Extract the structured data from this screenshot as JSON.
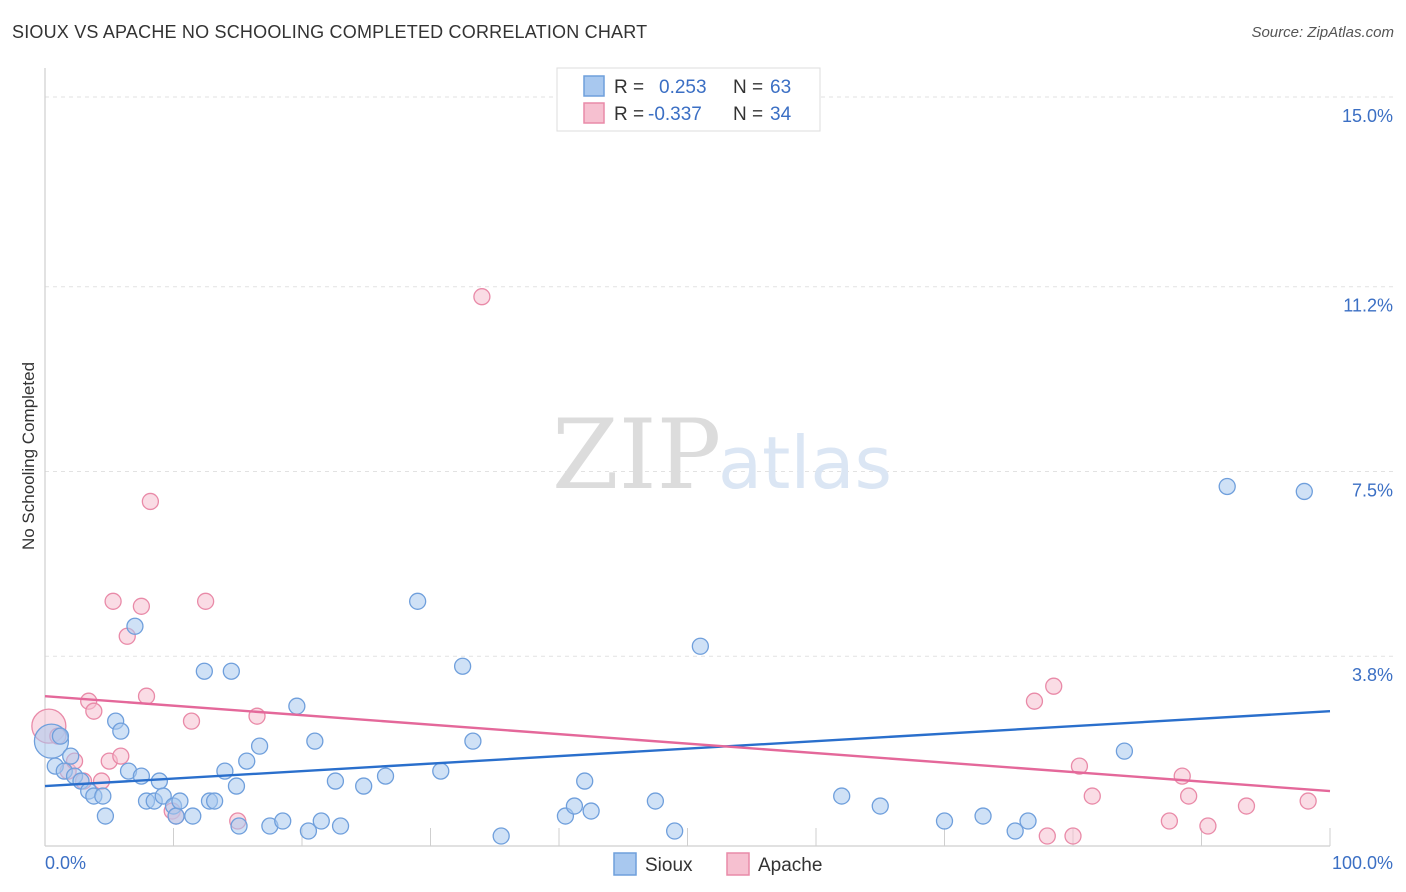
{
  "title": "SIOUX VS APACHE NO SCHOOLING COMPLETED CORRELATION CHART",
  "source": "Source: ZipAtlas.com",
  "watermark": {
    "zip": "ZIP",
    "atlas": "atlas"
  },
  "chart_data": {
    "type": "scatter",
    "title": "SIOUX VS APACHE NO SCHOOLING COMPLETED CORRELATION CHART",
    "xlabel": "",
    "ylabel": "No Schooling Completed",
    "xlim": [
      0,
      100
    ],
    "ylim": [
      0,
      15.5
    ],
    "x_ticks": [
      {
        "value": 0,
        "label": "0.0%"
      },
      {
        "value": 100,
        "label": "100.0%"
      }
    ],
    "y_ticks": [
      {
        "value": 3.8,
        "label": "3.8%"
      },
      {
        "value": 7.5,
        "label": "7.5%"
      },
      {
        "value": 11.2,
        "label": "11.2%"
      },
      {
        "value": 15.0,
        "label": "15.0%"
      }
    ],
    "legend_top": [
      {
        "r_label": "R =",
        "r_value": "0.253",
        "n_label": "N =",
        "n_value": "63",
        "color": "#a8c8ef",
        "stroke": "#6f9fdc"
      },
      {
        "r_label": "R =",
        "r_value": "-0.337",
        "n_label": "N =",
        "n_value": "34",
        "color": "#f6c0d0",
        "stroke": "#e98aa8"
      }
    ],
    "series": [
      {
        "name": "Sioux",
        "color": "#a8c8ef",
        "stroke": "#6f9fdc",
        "line_color": "#2a6fcc",
        "trend": {
          "x": [
            0,
            100
          ],
          "y": [
            1.2,
            2.7
          ]
        },
        "points": [
          {
            "x": 0.5,
            "y": 2.1,
            "big": true
          },
          {
            "x": 0.8,
            "y": 1.6
          },
          {
            "x": 1.2,
            "y": 2.2
          },
          {
            "x": 1.5,
            "y": 1.5
          },
          {
            "x": 2.0,
            "y": 1.8
          },
          {
            "x": 2.3,
            "y": 1.4
          },
          {
            "x": 2.8,
            "y": 1.3
          },
          {
            "x": 3.4,
            "y": 1.1
          },
          {
            "x": 3.8,
            "y": 1.0
          },
          {
            "x": 4.5,
            "y": 1.0
          },
          {
            "x": 4.7,
            "y": 0.6
          },
          {
            "x": 5.5,
            "y": 2.5
          },
          {
            "x": 5.9,
            "y": 2.3
          },
          {
            "x": 6.5,
            "y": 1.5
          },
          {
            "x": 7.0,
            "y": 4.4
          },
          {
            "x": 7.5,
            "y": 1.4
          },
          {
            "x": 7.9,
            "y": 0.9
          },
          {
            "x": 8.5,
            "y": 0.9
          },
          {
            "x": 8.9,
            "y": 1.3
          },
          {
            "x": 9.2,
            "y": 1.0
          },
          {
            "x": 10.0,
            "y": 0.8
          },
          {
            "x": 10.2,
            "y": 0.6
          },
          {
            "x": 10.5,
            "y": 0.9
          },
          {
            "x": 11.5,
            "y": 0.6
          },
          {
            "x": 12.4,
            "y": 3.5
          },
          {
            "x": 12.8,
            "y": 0.9
          },
          {
            "x": 13.2,
            "y": 0.9
          },
          {
            "x": 14.0,
            "y": 1.5
          },
          {
            "x": 14.5,
            "y": 3.5
          },
          {
            "x": 14.9,
            "y": 1.2
          },
          {
            "x": 15.1,
            "y": 0.4
          },
          {
            "x": 15.7,
            "y": 1.7
          },
          {
            "x": 16.7,
            "y": 2.0
          },
          {
            "x": 17.5,
            "y": 0.4
          },
          {
            "x": 18.5,
            "y": 0.5
          },
          {
            "x": 19.6,
            "y": 2.8
          },
          {
            "x": 20.5,
            "y": 0.3
          },
          {
            "x": 21.0,
            "y": 2.1
          },
          {
            "x": 21.5,
            "y": 0.5
          },
          {
            "x": 22.6,
            "y": 1.3
          },
          {
            "x": 23.0,
            "y": 0.4
          },
          {
            "x": 24.8,
            "y": 1.2
          },
          {
            "x": 26.5,
            "y": 1.4
          },
          {
            "x": 29.0,
            "y": 4.9
          },
          {
            "x": 30.8,
            "y": 1.5
          },
          {
            "x": 32.5,
            "y": 3.6
          },
          {
            "x": 33.3,
            "y": 2.1
          },
          {
            "x": 35.5,
            "y": 0.2
          },
          {
            "x": 40.5,
            "y": 0.6
          },
          {
            "x": 41.2,
            "y": 0.8
          },
          {
            "x": 42.0,
            "y": 1.3
          },
          {
            "x": 42.5,
            "y": 0.7
          },
          {
            "x": 47.5,
            "y": 0.9
          },
          {
            "x": 49.0,
            "y": 0.3
          },
          {
            "x": 51.0,
            "y": 4.0
          },
          {
            "x": 62.0,
            "y": 1.0
          },
          {
            "x": 65.0,
            "y": 0.8
          },
          {
            "x": 70.0,
            "y": 0.5
          },
          {
            "x": 73.0,
            "y": 0.6
          },
          {
            "x": 75.5,
            "y": 0.3
          },
          {
            "x": 76.5,
            "y": 0.5
          },
          {
            "x": 84.0,
            "y": 1.9
          },
          {
            "x": 92.0,
            "y": 7.2
          },
          {
            "x": 98.0,
            "y": 7.1
          }
        ]
      },
      {
        "name": "Apache",
        "color": "#f6c0d0",
        "stroke": "#e98aa8",
        "line_color": "#e4689a",
        "trend": {
          "x": [
            0,
            100
          ],
          "y": [
            3.0,
            1.1
          ]
        },
        "points": [
          {
            "x": 0.3,
            "y": 2.4,
            "big": true
          },
          {
            "x": 1.0,
            "y": 2.2
          },
          {
            "x": 1.8,
            "y": 1.5
          },
          {
            "x": 2.3,
            "y": 1.7
          },
          {
            "x": 3.0,
            "y": 1.3
          },
          {
            "x": 3.4,
            "y": 2.9
          },
          {
            "x": 3.8,
            "y": 2.7
          },
          {
            "x": 4.4,
            "y": 1.3
          },
          {
            "x": 5.0,
            "y": 1.7
          },
          {
            "x": 5.3,
            "y": 4.9
          },
          {
            "x": 5.9,
            "y": 1.8
          },
          {
            "x": 6.4,
            "y": 4.2
          },
          {
            "x": 7.5,
            "y": 4.8
          },
          {
            "x": 7.9,
            "y": 3.0
          },
          {
            "x": 8.2,
            "y": 6.9
          },
          {
            "x": 9.9,
            "y": 0.7
          },
          {
            "x": 10.2,
            "y": 0.6
          },
          {
            "x": 11.4,
            "y": 2.5
          },
          {
            "x": 12.5,
            "y": 4.9
          },
          {
            "x": 15.0,
            "y": 0.5
          },
          {
            "x": 16.5,
            "y": 2.6
          },
          {
            "x": 34.0,
            "y": 11.0
          },
          {
            "x": 77.0,
            "y": 2.9
          },
          {
            "x": 78.5,
            "y": 3.2
          },
          {
            "x": 78.0,
            "y": 0.2
          },
          {
            "x": 80.0,
            "y": 0.2
          },
          {
            "x": 80.5,
            "y": 1.6
          },
          {
            "x": 81.5,
            "y": 1.0
          },
          {
            "x": 87.5,
            "y": 0.5
          },
          {
            "x": 88.5,
            "y": 1.4
          },
          {
            "x": 89.0,
            "y": 1.0
          },
          {
            "x": 90.5,
            "y": 0.4
          },
          {
            "x": 93.5,
            "y": 0.8
          },
          {
            "x": 98.3,
            "y": 0.9
          }
        ]
      }
    ]
  }
}
